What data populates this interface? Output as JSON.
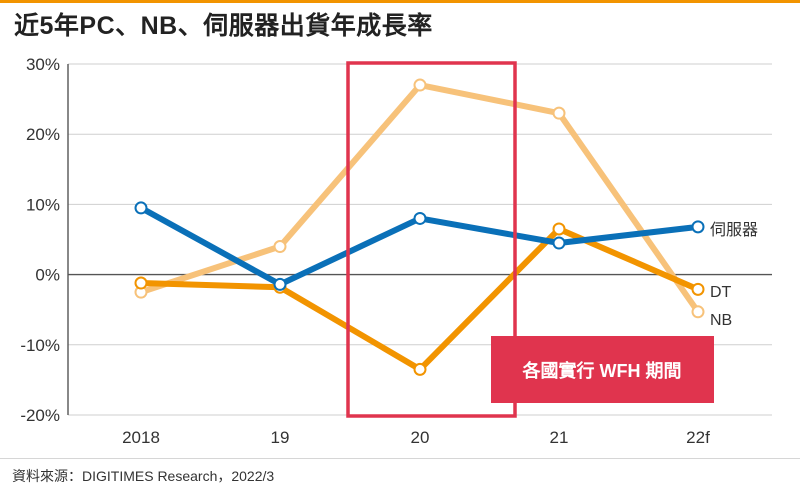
{
  "title": "近5年PC、NB、伺服器出貨年成長率",
  "source": "資料來源：DIGITIMES Research，2022/3",
  "highlight_label": "各國實行 WFH 期間",
  "colors": {
    "server": "#0a70b8",
    "dt": "#f29400",
    "nb": "#f7c27a",
    "highlight": "#e0344e",
    "accent": "#f29400"
  },
  "chart_data": {
    "type": "line",
    "title": "近5年PC、NB、伺服器出貨年成長率",
    "categories": [
      "2018",
      "19",
      "20",
      "21",
      "22f"
    ],
    "y_ticks": [
      "30%",
      "20%",
      "10%",
      "0%",
      "-10%",
      "-20%"
    ],
    "y_tick_values": [
      30,
      20,
      10,
      0,
      -10,
      -20
    ],
    "ylim": [
      -20,
      30
    ],
    "grid": true,
    "series": [
      {
        "key": "nb",
        "name": "NB",
        "values": [
          -2.5,
          4,
          27,
          23,
          -5.3
        ]
      },
      {
        "key": "dt",
        "name": "DT",
        "values": [
          -1.2,
          -1.8,
          -13.5,
          6.5,
          -2.1
        ]
      },
      {
        "key": "server",
        "name": "伺服器",
        "values": [
          9.5,
          -1.4,
          8,
          4.5,
          6.8
        ]
      }
    ],
    "highlight_range": [
      "20",
      "21"
    ]
  }
}
